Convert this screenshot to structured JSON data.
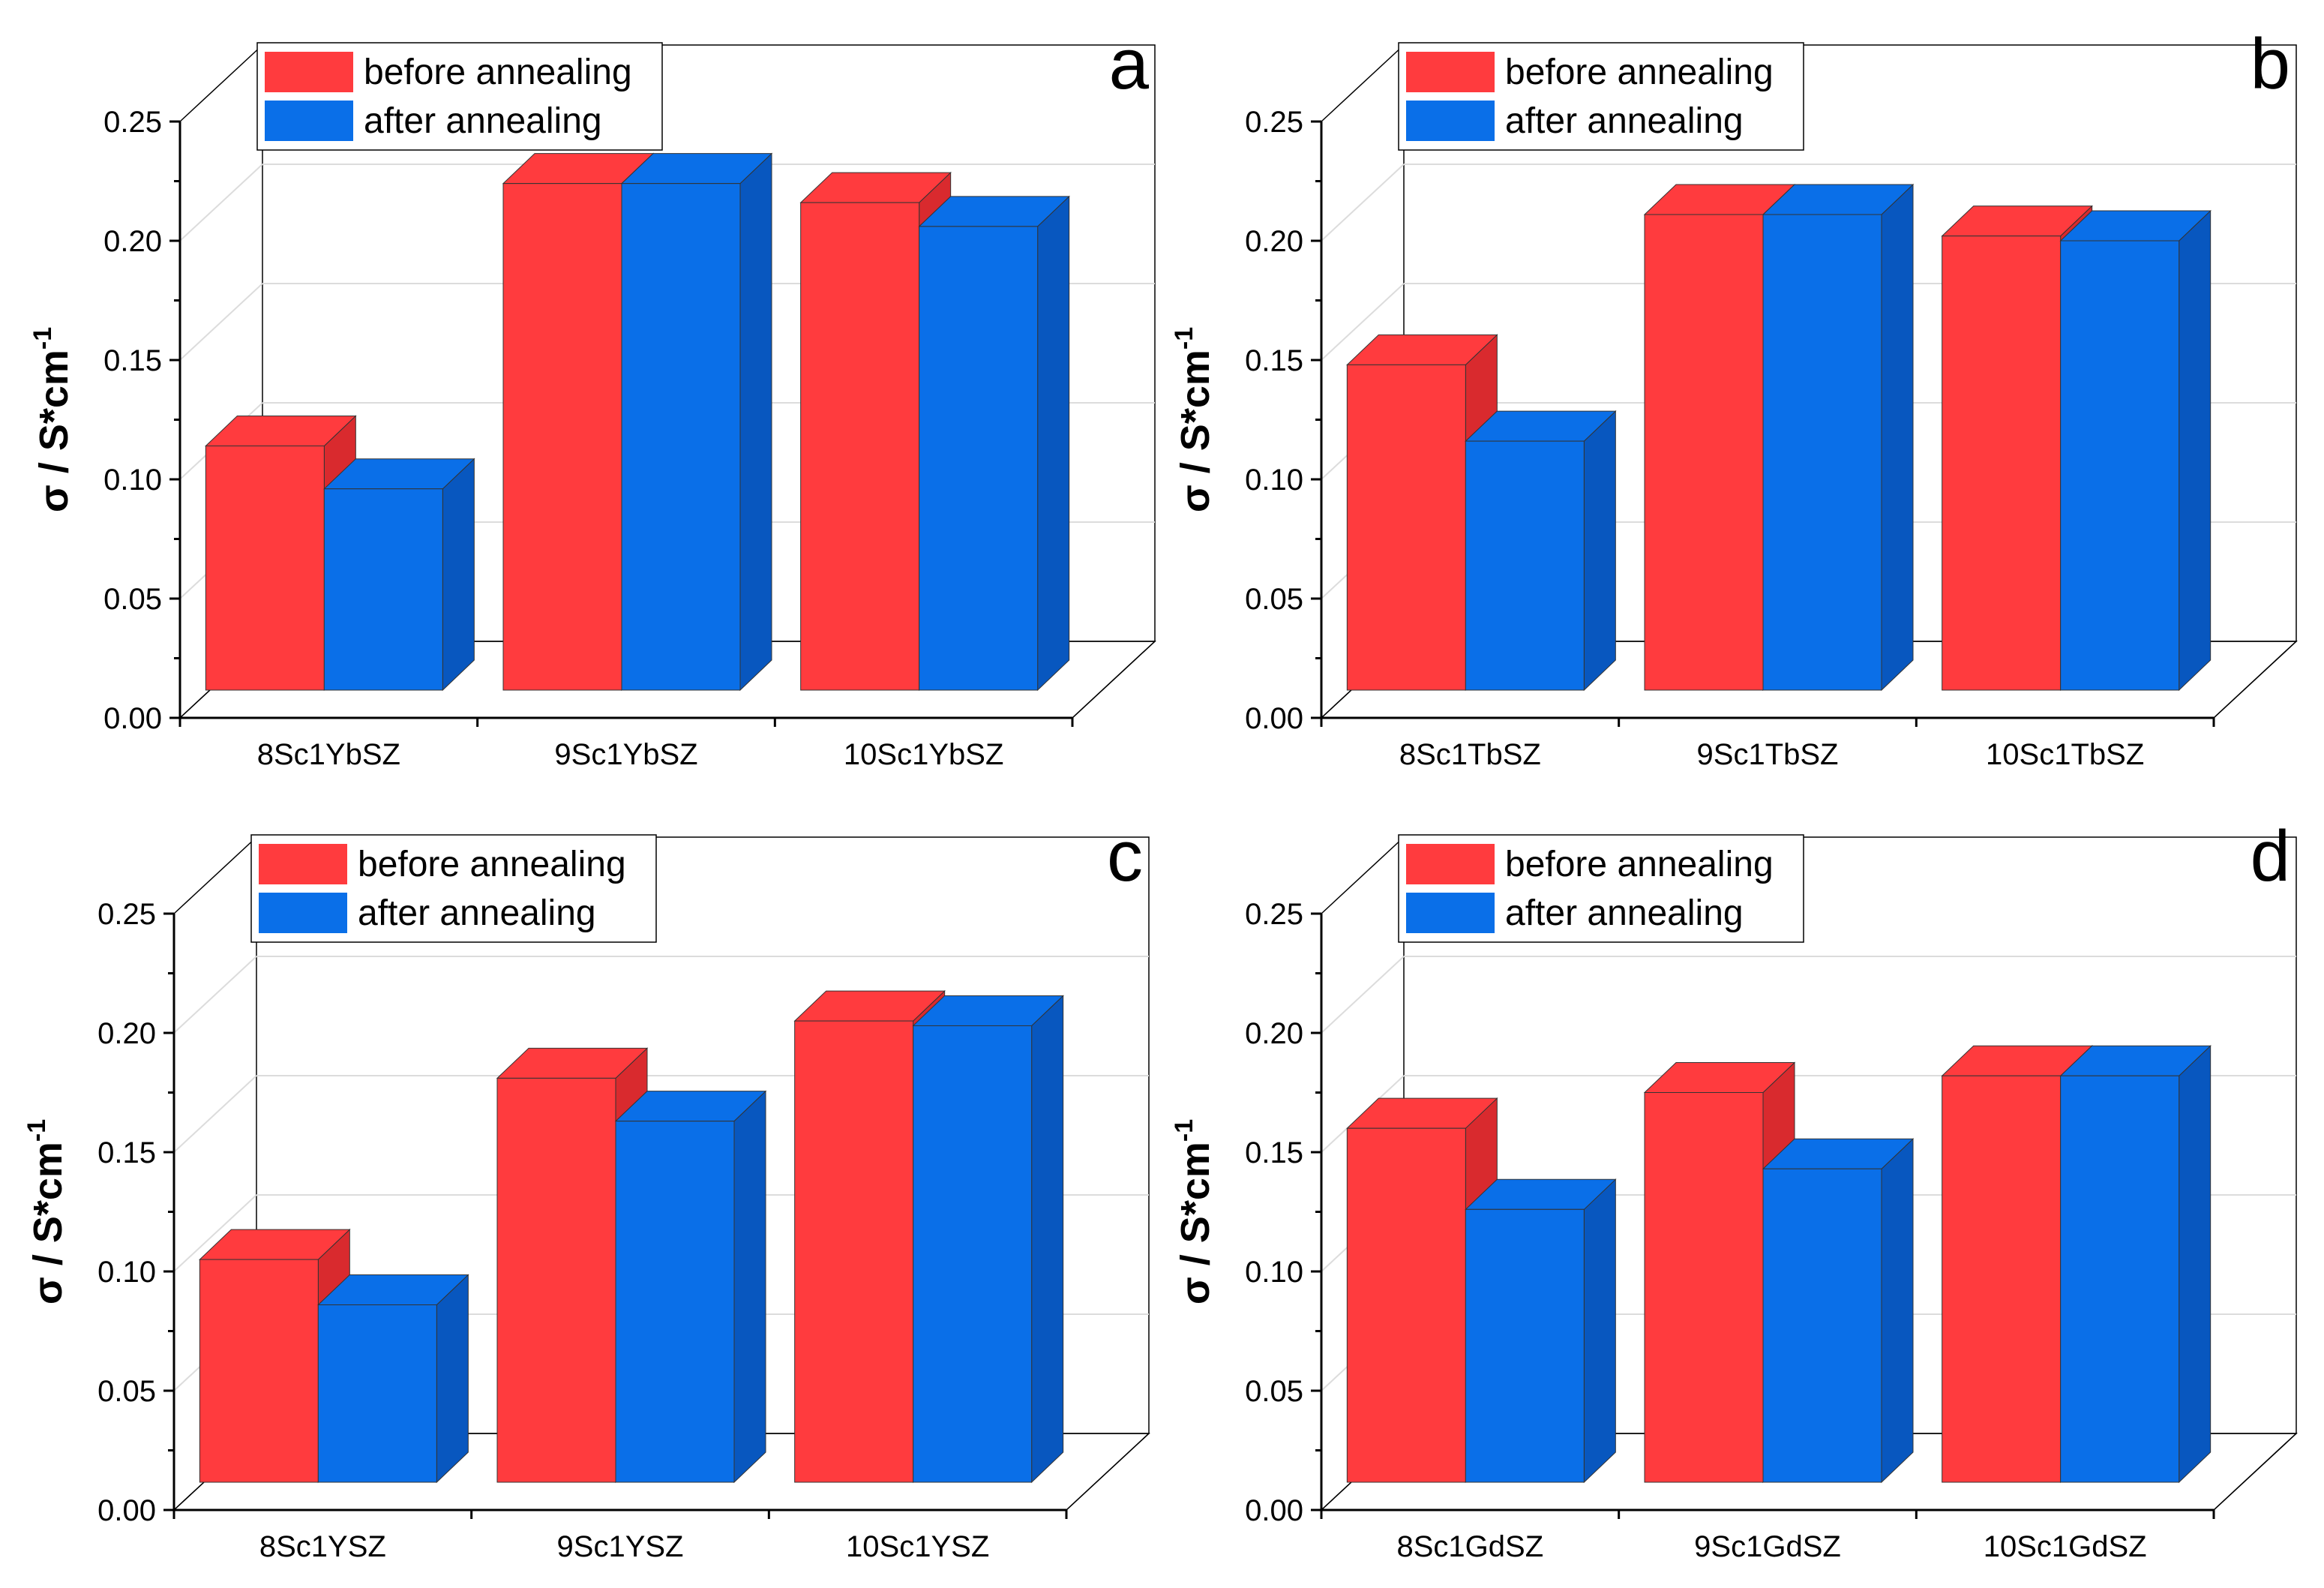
{
  "colors": {
    "before": "#ff3b3e",
    "before_top": "#ff3b3e",
    "before_side": "#d92a2e",
    "after": "#0a6fe8",
    "after_top": "#0a6fe8",
    "after_side": "#0857bf",
    "wall": "#ffffff",
    "grid": "#dcdcdc",
    "axis": "#000000"
  },
  "chart_data": [
    {
      "type": "bar",
      "panel": "a",
      "categories": [
        "8Sc1YbSZ",
        "9Sc1YbSZ",
        "10Sc1YbSZ"
      ],
      "series": [
        {
          "name": "before annealing",
          "values": [
            0.103,
            0.213,
            0.205
          ]
        },
        {
          "name": "after annealing",
          "values": [
            0.085,
            0.213,
            0.195
          ]
        }
      ],
      "ylabel": "σ / S*cm",
      "ylabel_sup": "-1",
      "ylim": [
        0,
        0.25
      ],
      "yticks": [
        "0.00",
        "0.05",
        "0.10",
        "0.15",
        "0.20",
        "0.25"
      ],
      "legend_position": "top-left"
    },
    {
      "type": "bar",
      "panel": "b",
      "categories": [
        "8Sc1TbSZ",
        "9Sc1TbSZ",
        "10Sc1TbSZ"
      ],
      "series": [
        {
          "name": "before annealing",
          "values": [
            0.137,
            0.2,
            0.191
          ]
        },
        {
          "name": "after annealing",
          "values": [
            0.105,
            0.2,
            0.189
          ]
        }
      ],
      "ylabel": "σ / S*cm",
      "ylabel_sup": "-1",
      "ylim": [
        0,
        0.25
      ],
      "yticks": [
        "0.00",
        "0.05",
        "0.10",
        "0.15",
        "0.20",
        "0.25"
      ],
      "legend_position": "top-left"
    },
    {
      "type": "bar",
      "panel": "c",
      "categories": [
        "8Sc1YSZ",
        "9Sc1YSZ",
        "10Sc1YSZ"
      ],
      "series": [
        {
          "name": "before annealing",
          "values": [
            0.094,
            0.17,
            0.194
          ]
        },
        {
          "name": "after annealing",
          "values": [
            0.075,
            0.152,
            0.192
          ]
        }
      ],
      "ylabel": "σ / S*cm",
      "ylabel_sup": "-1",
      "ylim": [
        0,
        0.25
      ],
      "yticks": [
        "0.00",
        "0.05",
        "0.10",
        "0.15",
        "0.20",
        "0.25"
      ],
      "legend_position": "top-left"
    },
    {
      "type": "bar",
      "panel": "d",
      "categories": [
        "8Sc1GdSZ",
        "9Sc1GdSZ",
        "10Sc1GdSZ"
      ],
      "series": [
        {
          "name": "before annealing",
          "values": [
            0.149,
            0.164,
            0.171
          ]
        },
        {
          "name": "after annealing",
          "values": [
            0.115,
            0.132,
            0.171
          ]
        }
      ],
      "ylabel": "σ / S*cm",
      "ylabel_sup": "-1",
      "ylim": [
        0,
        0.25
      ],
      "yticks": [
        "0.00",
        "0.05",
        "0.10",
        "0.15",
        "0.20",
        "0.25"
      ],
      "legend_position": "top-left"
    }
  ]
}
